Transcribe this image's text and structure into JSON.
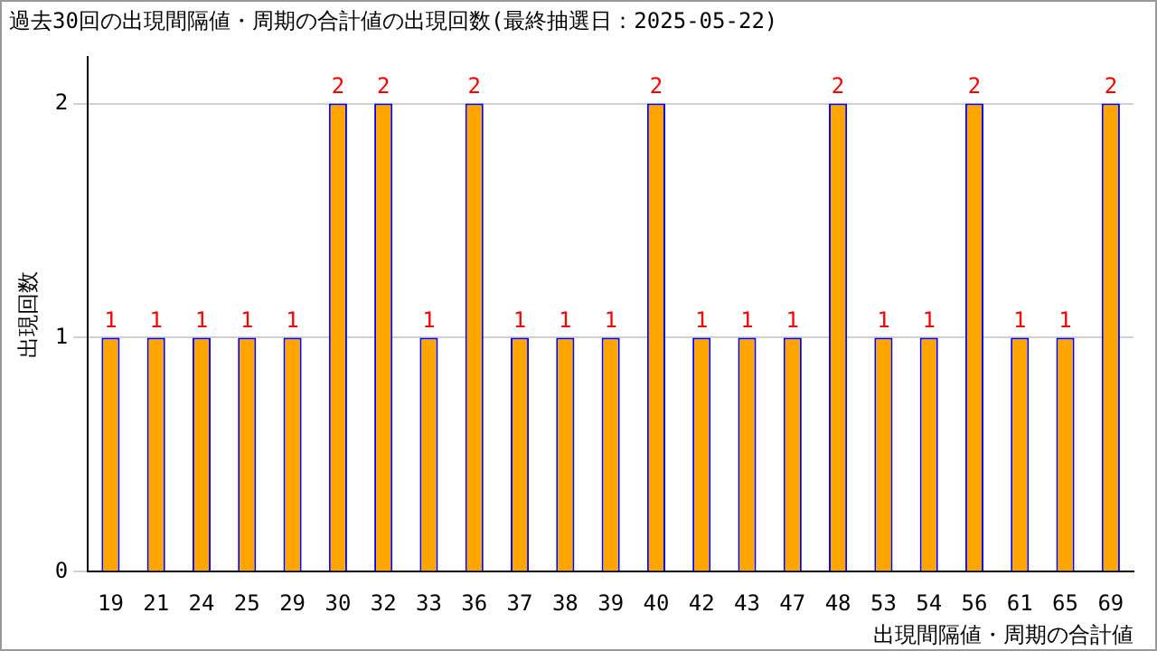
{
  "chart_data": {
    "type": "bar",
    "title": "過去30回の出現間隔値・周期の合計値の出現回数(最終抽選日：2025-05-22)",
    "xlabel": "出現間隔値・周期の合計値",
    "ylabel": "出現回数",
    "categories": [
      "19",
      "21",
      "24",
      "25",
      "29",
      "30",
      "32",
      "33",
      "36",
      "37",
      "38",
      "39",
      "40",
      "42",
      "43",
      "47",
      "48",
      "53",
      "54",
      "56",
      "61",
      "65",
      "69"
    ],
    "series": [
      {
        "color": "#ffa500",
        "values": [
          1,
          1,
          1,
          1,
          1,
          2,
          2,
          1,
          2,
          1,
          1,
          1,
          2,
          1,
          1,
          1,
          2,
          1,
          1,
          2,
          1,
          1,
          2
        ]
      }
    ],
    "ylim": [
      0,
      2.2
    ],
    "yticks": [
      0,
      1,
      2
    ],
    "grid": "y",
    "legend": false,
    "data_labels": true
  }
}
